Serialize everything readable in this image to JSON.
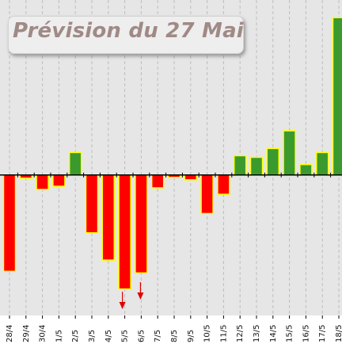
{
  "chart_data": {
    "type": "bar",
    "title": "Prévision du 27 Mai",
    "categories": [
      "28/4",
      "29/4",
      "30/4",
      "1/5",
      "2/5",
      "3/5",
      "4/5",
      "5/5",
      "6/5",
      "7/5",
      "8/5",
      "9/5",
      "10/5",
      "11/5",
      "12/5",
      "13/5",
      "14/5",
      "15/5",
      "16/5",
      "17/5",
      "18/5"
    ],
    "values": [
      -120,
      -4,
      -18,
      -14,
      28,
      -72,
      -106,
      -142,
      -122,
      -16,
      -3,
      -6,
      -48,
      -24,
      24,
      22,
      33,
      55,
      13,
      28,
      196
    ],
    "ylim": [
      -175,
      218
    ],
    "grid": {
      "vertical": true,
      "horizontal": false
    },
    "legend": "none",
    "markers": [
      {
        "category": "5/5",
        "icon": "down-arrow-icon"
      },
      {
        "category": "6/5",
        "icon": "down-arrow-icon"
      }
    ],
    "colors": {
      "positive": "#3a9a2e",
      "negative": "#ff0000",
      "bar_outline": "#ffff00",
      "background": "#e6e6e6",
      "gridline": "#bdbdbd",
      "axis": "#000000",
      "marker": "#e00000"
    }
  }
}
